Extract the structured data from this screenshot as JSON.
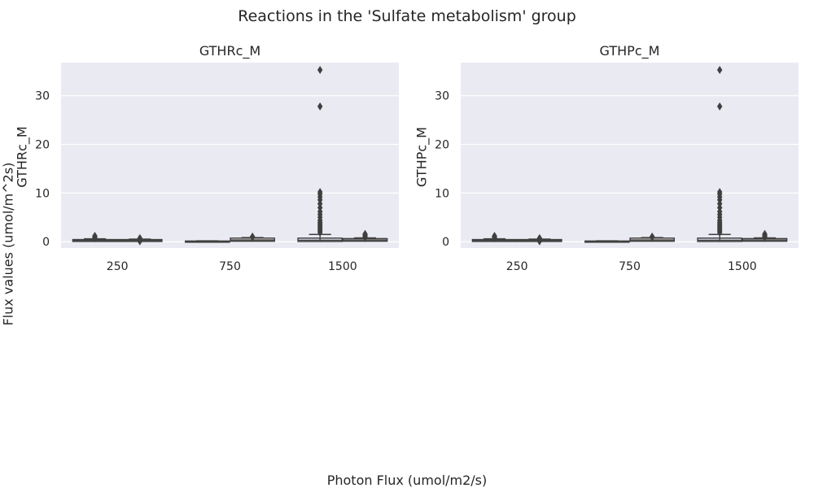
{
  "figure": {
    "title": "Reactions in the 'Sulfate metabolism' group",
    "xlabel": "Photon Flux (umol/m2/s)",
    "ylabel": "Flux values (umol/m^2s)"
  },
  "colors": {
    "axes_background": "#eaeaf2",
    "grid": "#ffffff",
    "box_edge": "#3f3f3f",
    "box_fill_series1": "#4c72b0",
    "box_fill_series2": "#dd8452"
  },
  "chart_data": [
    {
      "type": "box",
      "title": "GTHRc_M",
      "xlabel": "",
      "ylabel": "GTHRc_M",
      "categories": [
        "250",
        "750",
        "1500"
      ],
      "ylim": [
        -1.3,
        36.8
      ],
      "yticks": [
        0,
        10,
        20,
        30
      ],
      "grid": true,
      "series": [
        {
          "boxes": [
            {
              "q1": 0.05,
              "median": 0.25,
              "q3": 0.45,
              "whislo": 0.0,
              "whishi": 0.6,
              "outliers": [
                0.75,
                0.9,
                1.05,
                1.2
              ]
            },
            {
              "q1": 0.0,
              "median": 0.0,
              "q3": 0.15,
              "whislo": 0.0,
              "whishi": 0.2,
              "outliers": []
            },
            {
              "q1": 0.05,
              "median": 0.3,
              "q3": 0.75,
              "whislo": 0.0,
              "whishi": 1.5,
              "outliers": [
                1.9,
                2.2,
                2.5,
                2.8,
                3.1,
                3.4,
                3.7,
                4.0,
                4.4,
                5.0,
                5.6,
                6.2,
                7.0,
                7.8,
                8.6,
                9.2,
                9.8,
                10.2,
                27.8,
                35.3
              ]
            }
          ]
        },
        {
          "boxes": [
            {
              "q1": 0.05,
              "median": 0.25,
              "q3": 0.45,
              "whislo": 0.0,
              "whishi": 0.55,
              "outliers": [
                0.1,
                0.6,
                0.75
              ]
            },
            {
              "q1": 0.1,
              "median": 0.35,
              "q3": 0.75,
              "whislo": 0.0,
              "whishi": 0.85,
              "outliers": [
                0.95,
                1.05
              ]
            },
            {
              "q1": 0.1,
              "median": 0.35,
              "q3": 0.65,
              "whislo": 0.0,
              "whishi": 0.8,
              "outliers": [
                0.95,
                1.1,
                1.25,
                1.4,
                1.6
              ]
            }
          ]
        }
      ]
    },
    {
      "type": "box",
      "title": "GTHPc_M",
      "xlabel": "",
      "ylabel": "GTHPc_M",
      "categories": [
        "250",
        "750",
        "1500"
      ],
      "ylim": [
        -1.3,
        36.8
      ],
      "yticks": [
        0,
        10,
        20,
        30
      ],
      "grid": true,
      "series": [
        {
          "boxes": [
            {
              "q1": 0.05,
              "median": 0.25,
              "q3": 0.45,
              "whislo": 0.0,
              "whishi": 0.6,
              "outliers": [
                0.75,
                0.9,
                1.05,
                1.2
              ]
            },
            {
              "q1": 0.0,
              "median": 0.0,
              "q3": 0.15,
              "whislo": 0.0,
              "whishi": 0.2,
              "outliers": []
            },
            {
              "q1": 0.05,
              "median": 0.3,
              "q3": 0.75,
              "whislo": 0.0,
              "whishi": 1.5,
              "outliers": [
                1.9,
                2.2,
                2.5,
                2.8,
                3.1,
                3.4,
                3.7,
                4.0,
                4.4,
                5.0,
                5.6,
                6.2,
                7.0,
                7.8,
                8.6,
                9.2,
                9.8,
                10.2,
                27.8,
                35.3
              ]
            }
          ]
        },
        {
          "boxes": [
            {
              "q1": 0.05,
              "median": 0.25,
              "q3": 0.45,
              "whislo": 0.0,
              "whishi": 0.55,
              "outliers": [
                0.1,
                0.6,
                0.75
              ]
            },
            {
              "q1": 0.1,
              "median": 0.35,
              "q3": 0.75,
              "whislo": 0.0,
              "whishi": 0.85,
              "outliers": [
                0.95,
                1.05
              ]
            },
            {
              "q1": 0.1,
              "median": 0.35,
              "q3": 0.65,
              "whislo": 0.0,
              "whishi": 0.8,
              "outliers": [
                0.95,
                1.1,
                1.25,
                1.4,
                1.6
              ]
            }
          ]
        }
      ]
    }
  ]
}
